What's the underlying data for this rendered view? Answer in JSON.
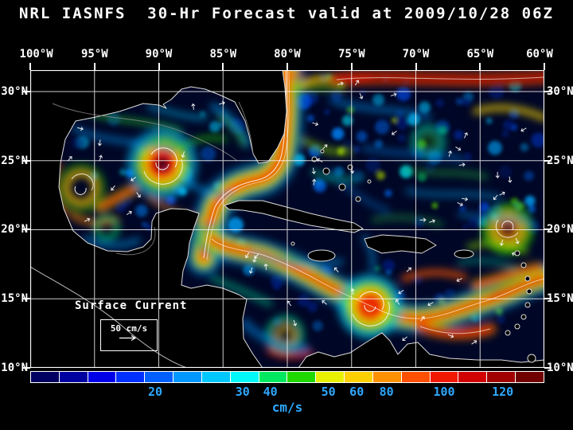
{
  "title": "NRL IASNFS  30-Hr Forecast valid at 2009/10/28 06Z",
  "axes": {
    "lon_labels": [
      "100°W",
      "95°W",
      "90°W",
      "85°W",
      "80°W",
      "75°W",
      "70°W",
      "65°W",
      "60°W"
    ],
    "lat_labels_left": [
      "30°N",
      "25°N",
      "20°N",
      "15°N",
      "10°N"
    ],
    "lat_labels_right": [
      "30°N",
      "25°N",
      "20°N",
      "15°N",
      "10°N"
    ]
  },
  "legend": {
    "title": "Surface Current",
    "scale_value": "50 cm/s"
  },
  "colorbar": {
    "unit": "cm/s",
    "tick_label_color": "#2FA8FF",
    "ticks": [
      {
        "label": "20",
        "pos_pct": 24.3
      },
      {
        "label": "30",
        "pos_pct": 41.3
      },
      {
        "label": "40",
        "pos_pct": 46.7
      },
      {
        "label": "50",
        "pos_pct": 58.0
      },
      {
        "label": "60",
        "pos_pct": 63.5
      },
      {
        "label": "80",
        "pos_pct": 69.3
      },
      {
        "label": "100",
        "pos_pct": 80.5
      },
      {
        "label": "120",
        "pos_pct": 91.9
      }
    ],
    "segment_colors": [
      "#000060",
      "#0000A0",
      "#0000E8",
      "#0030FF",
      "#0060FF",
      "#0098FF",
      "#00C8FF",
      "#00F8F8",
      "#00E860",
      "#20D800",
      "#E8F000",
      "#FFD000",
      "#FF9000",
      "#FF5000",
      "#F01800",
      "#D00000",
      "#A00000",
      "#700000"
    ]
  },
  "colors": {
    "background": "#000000",
    "text": "#FFFFFF",
    "ocean_base": "#000726",
    "grid": "#FFFFFF"
  }
}
